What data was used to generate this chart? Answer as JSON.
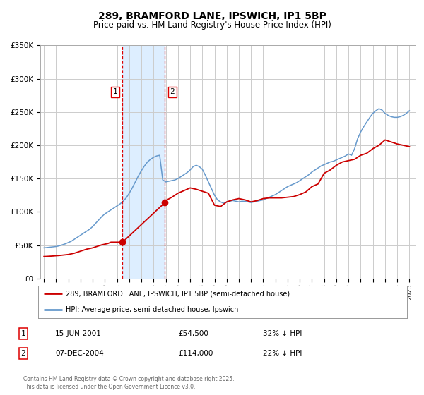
{
  "title": "289, BRAMFORD LANE, IPSWICH, IP1 5BP",
  "subtitle": "Price paid vs. HM Land Registry's House Price Index (HPI)",
  "title_fontsize": 10,
  "subtitle_fontsize": 8.5,
  "background_color": "#ffffff",
  "plot_bg_color": "#ffffff",
  "grid_color": "#cccccc",
  "ylim": [
    0,
    350000
  ],
  "yticks": [
    0,
    50000,
    100000,
    150000,
    200000,
    250000,
    300000,
    350000
  ],
  "ytick_labels": [
    "£0",
    "£50K",
    "£100K",
    "£150K",
    "£200K",
    "£250K",
    "£300K",
    "£350K"
  ],
  "xlim_start": 1994.7,
  "xlim_end": 2025.5,
  "xtick_years": [
    1995,
    1996,
    1997,
    1998,
    1999,
    2000,
    2001,
    2002,
    2003,
    2004,
    2005,
    2006,
    2007,
    2008,
    2009,
    2010,
    2011,
    2012,
    2013,
    2014,
    2015,
    2016,
    2017,
    2018,
    2019,
    2020,
    2021,
    2022,
    2023,
    2024,
    2025
  ],
  "transaction1_x": 2001.45,
  "transaction1_y": 54500,
  "transaction1_label": "1",
  "transaction1_date": "15-JUN-2001",
  "transaction1_price": "£54,500",
  "transaction1_hpi": "32% ↓ HPI",
  "transaction2_x": 2004.93,
  "transaction2_y": 114000,
  "transaction2_label": "2",
  "transaction2_date": "07-DEC-2004",
  "transaction2_price": "£114,000",
  "transaction2_hpi": "22% ↓ HPI",
  "vline1_x": 2001.45,
  "vline2_x": 2004.93,
  "shade_color": "#ddeeff",
  "vline_color": "#dd0000",
  "red_line_color": "#cc0000",
  "blue_line_color": "#6699cc",
  "marker_color": "#cc0000",
  "legend_label_red": "289, BRAMFORD LANE, IPSWICH, IP1 5BP (semi-detached house)",
  "legend_label_blue": "HPI: Average price, semi-detached house, Ipswich",
  "footer_text": "Contains HM Land Registry data © Crown copyright and database right 2025.\nThis data is licensed under the Open Government Licence v3.0.",
  "hpi_x": [
    1995.0,
    1995.25,
    1995.5,
    1995.75,
    1996.0,
    1996.25,
    1996.5,
    1996.75,
    1997.0,
    1997.25,
    1997.5,
    1997.75,
    1998.0,
    1998.25,
    1998.5,
    1998.75,
    1999.0,
    1999.25,
    1999.5,
    1999.75,
    2000.0,
    2000.25,
    2000.5,
    2000.75,
    2001.0,
    2001.25,
    2001.5,
    2001.75,
    2002.0,
    2002.25,
    2002.5,
    2002.75,
    2003.0,
    2003.25,
    2003.5,
    2003.75,
    2004.0,
    2004.25,
    2004.5,
    2004.75,
    2005.0,
    2005.25,
    2005.5,
    2005.75,
    2006.0,
    2006.25,
    2006.5,
    2006.75,
    2007.0,
    2007.25,
    2007.5,
    2007.75,
    2008.0,
    2008.25,
    2008.5,
    2008.75,
    2009.0,
    2009.25,
    2009.5,
    2009.75,
    2010.0,
    2010.25,
    2010.5,
    2010.75,
    2011.0,
    2011.25,
    2011.5,
    2011.75,
    2012.0,
    2012.25,
    2012.5,
    2012.75,
    2013.0,
    2013.25,
    2013.5,
    2013.75,
    2014.0,
    2014.25,
    2014.5,
    2014.75,
    2015.0,
    2015.25,
    2015.5,
    2015.75,
    2016.0,
    2016.25,
    2016.5,
    2016.75,
    2017.0,
    2017.25,
    2017.5,
    2017.75,
    2018.0,
    2018.25,
    2018.5,
    2018.75,
    2019.0,
    2019.25,
    2019.5,
    2019.75,
    2020.0,
    2020.25,
    2020.5,
    2020.75,
    2021.0,
    2021.25,
    2021.5,
    2021.75,
    2022.0,
    2022.25,
    2022.5,
    2022.75,
    2023.0,
    2023.25,
    2023.5,
    2023.75,
    2024.0,
    2024.25,
    2024.5,
    2024.75,
    2025.0
  ],
  "hpi_y": [
    46000,
    46500,
    47000,
    47500,
    48000,
    49000,
    50500,
    52000,
    54000,
    56000,
    59000,
    62000,
    65000,
    68000,
    71000,
    74000,
    78000,
    83000,
    88000,
    93000,
    97000,
    100000,
    103000,
    106000,
    109000,
    112000,
    116000,
    121000,
    128000,
    136000,
    145000,
    154000,
    162000,
    169000,
    175000,
    179000,
    182000,
    184000,
    185000,
    148000,
    145000,
    146000,
    147000,
    148000,
    150000,
    153000,
    156000,
    159000,
    163000,
    168000,
    170000,
    168000,
    164000,
    155000,
    145000,
    135000,
    125000,
    118000,
    115000,
    113000,
    115000,
    116000,
    117000,
    116000,
    115000,
    116000,
    116000,
    115000,
    114000,
    115000,
    116000,
    117000,
    118000,
    120000,
    122000,
    124000,
    126000,
    129000,
    132000,
    135000,
    138000,
    140000,
    142000,
    144000,
    147000,
    150000,
    153000,
    156000,
    160000,
    163000,
    166000,
    169000,
    171000,
    173000,
    175000,
    176000,
    178000,
    180000,
    182000,
    184000,
    187000,
    185000,
    195000,
    210000,
    220000,
    228000,
    235000,
    242000,
    248000,
    252000,
    255000,
    253000,
    248000,
    245000,
    243000,
    242000,
    242000,
    243000,
    245000,
    248000,
    252000
  ],
  "price_x": [
    1995.0,
    1995.25,
    1995.5,
    1995.75,
    1996.0,
    1996.25,
    1996.5,
    1996.75,
    1997.0,
    1997.25,
    1997.5,
    1997.75,
    1998.0,
    1998.25,
    1998.5,
    1998.75,
    1999.0,
    1999.25,
    1999.5,
    1999.75,
    2000.0,
    2000.25,
    2000.5,
    2000.75,
    2001.0,
    2001.45,
    2004.93,
    2005.0,
    2005.5,
    2006.0,
    2006.5,
    2007.0,
    2007.5,
    2008.0,
    2008.5,
    2009.0,
    2009.5,
    2010.0,
    2010.5,
    2011.0,
    2011.5,
    2012.0,
    2012.5,
    2013.0,
    2013.5,
    2014.0,
    2014.5,
    2015.0,
    2015.5,
    2016.0,
    2016.5,
    2017.0,
    2017.5,
    2018.0,
    2018.5,
    2019.0,
    2019.5,
    2020.0,
    2020.5,
    2021.0,
    2021.5,
    2022.0,
    2022.5,
    2023.0,
    2023.5,
    2024.0,
    2024.5,
    2025.0
  ],
  "price_y": [
    33000,
    33200,
    33500,
    33800,
    34200,
    34500,
    35000,
    35500,
    36000,
    37000,
    38000,
    39500,
    41000,
    42500,
    44000,
    45000,
    46000,
    47500,
    49000,
    50500,
    51500,
    52500,
    54500,
    54500,
    54500,
    54500,
    114000,
    117000,
    122000,
    128000,
    132000,
    136000,
    134000,
    131000,
    128000,
    110000,
    108000,
    115000,
    118000,
    120000,
    118000,
    115000,
    117000,
    120000,
    121000,
    121000,
    121000,
    122000,
    123000,
    126000,
    130000,
    138000,
    142000,
    158000,
    163000,
    170000,
    175000,
    177000,
    179000,
    185000,
    188000,
    195000,
    200000,
    208000,
    205000,
    202000,
    200000,
    198000
  ]
}
